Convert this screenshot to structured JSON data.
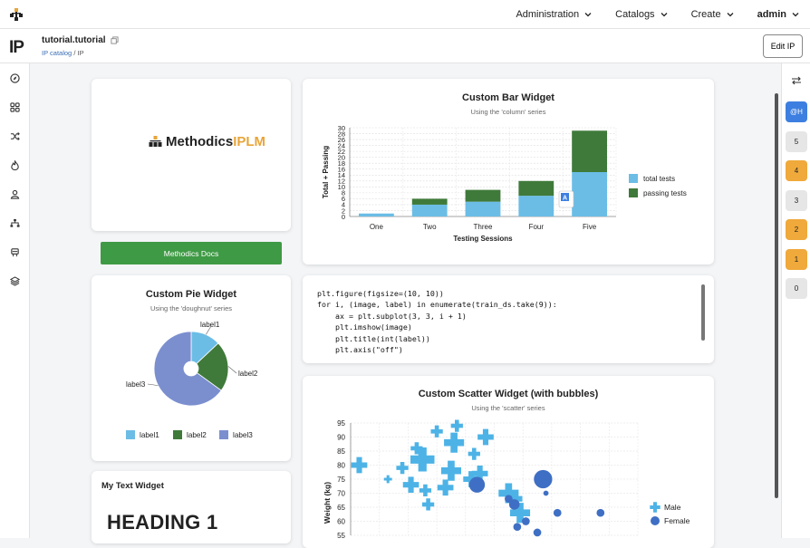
{
  "topnav": {
    "items": [
      "Administration",
      "Catalogs",
      "Create"
    ],
    "user": "admin"
  },
  "header": {
    "badge": "IP",
    "title": "tutorial.tutorial",
    "breadcrumb": [
      "IP catalog",
      "IP"
    ],
    "breadcrumb_sep": "/",
    "edit_label": "Edit IP"
  },
  "left_sidebar_icons": [
    "compass-icon",
    "grid-icon",
    "shuffle-icon",
    "flame-icon",
    "user-icon",
    "hierarchy-icon",
    "chip-icon",
    "layers-icon"
  ],
  "right_sidebar": {
    "chips": [
      {
        "label": "@H",
        "color": "blue"
      },
      {
        "label": "5",
        "color": "grey"
      },
      {
        "label": "4",
        "color": "orange"
      },
      {
        "label": "3",
        "color": "grey"
      },
      {
        "label": "2",
        "color": "orange"
      },
      {
        "label": "1",
        "color": "orange"
      },
      {
        "label": "0",
        "color": "grey"
      }
    ]
  },
  "logo_widget": {
    "brand_dark": "Methodics",
    "brand_accent": "IPLM",
    "accent_color": "#e8a53a"
  },
  "docs_button": {
    "label": "Methodics Docs",
    "color": "#3f9a45"
  },
  "code_widget": {
    "lines": [
      "plt.figure(figsize=(10, 10))",
      "for i, (image, label) in enumerate(train_ds.take(9)):",
      "    ax = plt.subplot(3, 3, i + 1)",
      "    plt.imshow(image)",
      "    plt.title(int(label))",
      "    plt.axis(\"off\")"
    ]
  },
  "text_widget": {
    "title": "My Text Widget",
    "heading": "HEADING 1"
  },
  "bar_widget": {
    "title": "Custom Bar Widget",
    "subtitle": "Using the 'column' series",
    "chart_data": {
      "type": "bar",
      "stacked": true,
      "categories": [
        "One",
        "Two",
        "Three",
        "Four",
        "Five"
      ],
      "series": [
        {
          "name": "total tests",
          "values": [
            1,
            4,
            5,
            7,
            15
          ],
          "color": "#6bbde6"
        },
        {
          "name": "passing tests",
          "values": [
            0,
            2,
            4,
            5,
            14
          ],
          "color": "#3f7a3a"
        }
      ],
      "xlabel": "Testing Sessions",
      "ylabel": "Total + Passing",
      "ylim": [
        0,
        30
      ],
      "yticks": [
        0,
        2,
        4,
        6,
        8,
        10,
        12,
        14,
        16,
        18,
        20,
        22,
        24,
        26,
        28,
        30
      ],
      "grid": true,
      "legend": "right"
    }
  },
  "pie_widget": {
    "title": "Custom Pie Widget",
    "subtitle": "Using the 'doughnut' series",
    "chart_data": {
      "type": "pie",
      "labels": [
        "label1",
        "label2",
        "label3"
      ],
      "values": [
        13,
        22,
        65
      ],
      "colors": [
        "#6bbde6",
        "#3f7a3a",
        "#7b8fcf"
      ],
      "legend": "bottom"
    }
  },
  "scatter_widget": {
    "title": "Custom Scatter Widget (with bubbles)",
    "subtitle": "Using the 'scatter' series",
    "chart_data": {
      "type": "scatter",
      "ylabel": "Weight (kg)",
      "ylim": [
        55,
        95
      ],
      "yticks": [
        55,
        60,
        65,
        70,
        75,
        80,
        85,
        90,
        95
      ],
      "xlim": [
        0,
        100
      ],
      "grid": true,
      "legend": "right",
      "series": [
        {
          "name": "Male",
          "marker": "cross",
          "color": "#4db3e6",
          "points": [
            [
              3,
              80,
              4
            ],
            [
              13,
              75,
              2
            ],
            [
              18,
              79,
              3
            ],
            [
              21,
              73,
              4
            ],
            [
              23,
              86,
              3
            ],
            [
              25,
              82,
              6
            ],
            [
              26,
              71,
              3
            ],
            [
              27,
              66,
              3
            ],
            [
              30,
              92,
              3
            ],
            [
              33,
              72,
              4
            ],
            [
              35,
              78,
              5
            ],
            [
              36,
              88,
              5
            ],
            [
              37,
              94,
              3
            ],
            [
              42,
              75,
              4
            ],
            [
              43,
              84,
              3
            ],
            [
              45,
              77,
              4
            ],
            [
              47,
              90,
              4
            ],
            [
              55,
              70,
              5
            ],
            [
              57,
              68,
              4
            ],
            [
              59,
              63,
              5
            ]
          ]
        },
        {
          "name": "Female",
          "marker": "circle",
          "color": "#3f6fc4",
          "points": [
            [
              44,
              73,
              6
            ],
            [
              55,
              68,
              3
            ],
            [
              57,
              66,
              4
            ],
            [
              58,
              58,
              3
            ],
            [
              61,
              60,
              3
            ],
            [
              65,
              56,
              3
            ],
            [
              67,
              75,
              7
            ],
            [
              68,
              70,
              2
            ],
            [
              72,
              63,
              3
            ],
            [
              87,
              63,
              3
            ]
          ]
        }
      ]
    }
  }
}
